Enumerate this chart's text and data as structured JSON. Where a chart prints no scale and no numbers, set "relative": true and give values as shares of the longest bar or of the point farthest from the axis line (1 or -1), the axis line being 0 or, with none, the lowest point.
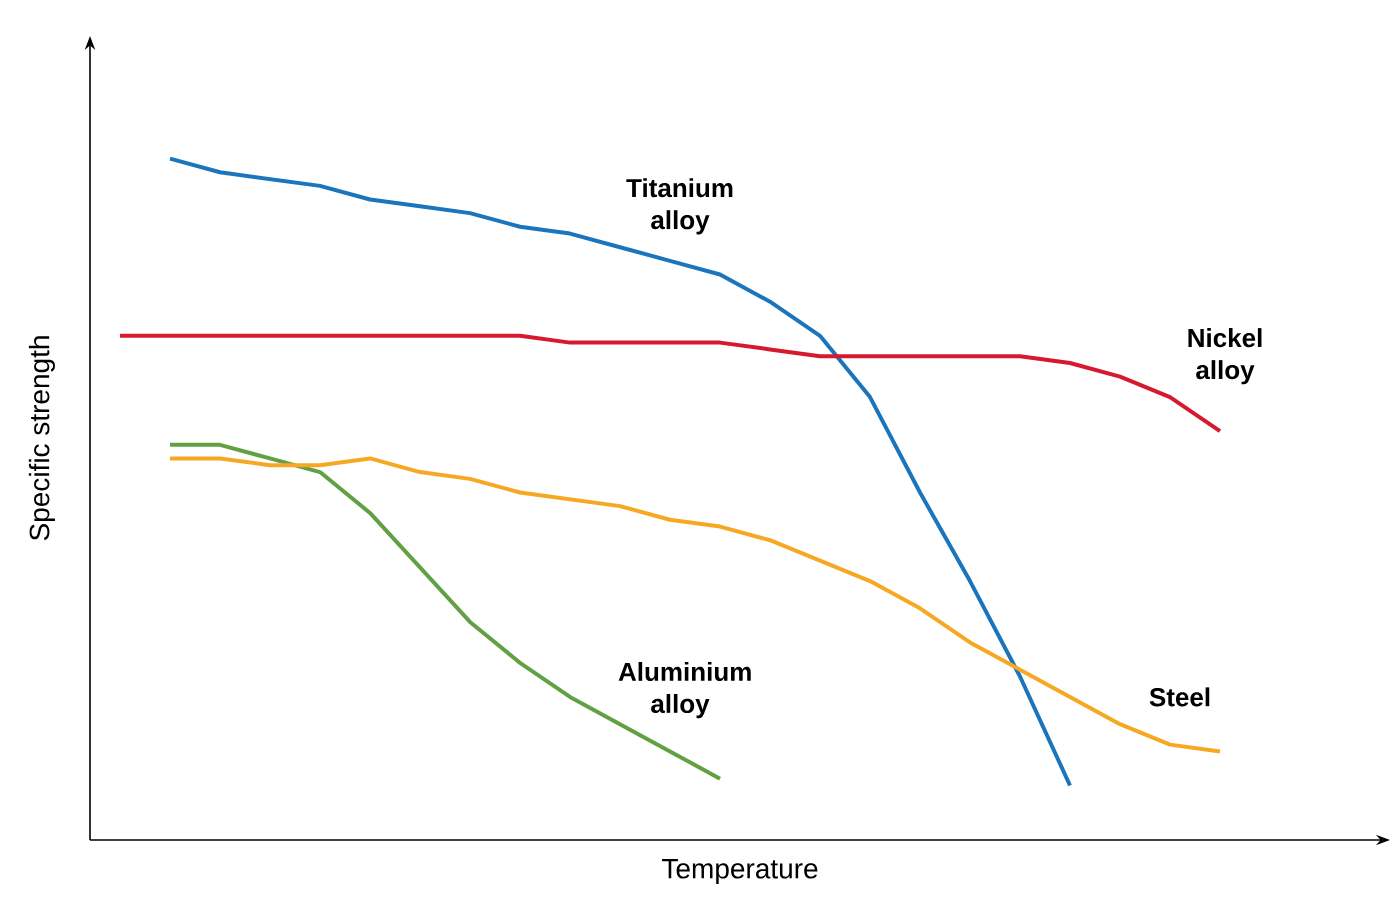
{
  "chart_data": {
    "type": "line",
    "xlabel": "Temperature",
    "ylabel": "Specific strength",
    "relative": true,
    "tick_labels": false,
    "marker": "none",
    "line_style": "solid",
    "categories": [
      null,
      null,
      null,
      null,
      null,
      null,
      null,
      null,
      null,
      null,
      null,
      null,
      null,
      null,
      null,
      null,
      null,
      null,
      null,
      null,
      null,
      null,
      null
    ],
    "series": [
      {
        "name": "Titanium alloy",
        "color": "#1a75bc",
        "values": [
          null,
          1.0,
          0.98,
          0.97,
          0.96,
          0.94,
          0.93,
          0.92,
          0.9,
          0.89,
          0.87,
          0.85,
          0.83,
          0.79,
          0.74,
          0.65,
          0.51,
          0.38,
          0.24,
          0.08,
          null,
          null,
          null
        ]
      },
      {
        "name": "Nickel alloy",
        "color": "#d7192f",
        "values": [
          0.74,
          0.74,
          0.74,
          0.74,
          0.74,
          0.74,
          0.74,
          0.74,
          0.74,
          0.73,
          0.73,
          0.73,
          0.73,
          0.72,
          0.71,
          0.71,
          0.71,
          0.71,
          0.71,
          0.7,
          0.68,
          0.65,
          0.6
        ]
      },
      {
        "name": "Aluminium alloy",
        "color": "#62a044",
        "values": [
          null,
          0.58,
          0.58,
          0.56,
          0.54,
          0.48,
          0.4,
          0.32,
          0.26,
          0.21,
          0.17,
          0.13,
          0.09,
          null,
          null,
          null,
          null,
          null,
          null,
          null,
          null,
          null,
          null
        ]
      },
      {
        "name": "Steel",
        "color": "#f7a823",
        "values": [
          null,
          0.56,
          0.56,
          0.55,
          0.55,
          0.56,
          0.54,
          0.53,
          0.51,
          0.5,
          0.49,
          0.47,
          0.46,
          0.44,
          0.41,
          0.38,
          0.34,
          0.29,
          0.25,
          0.21,
          0.17,
          0.14,
          0.13
        ]
      }
    ]
  }
}
